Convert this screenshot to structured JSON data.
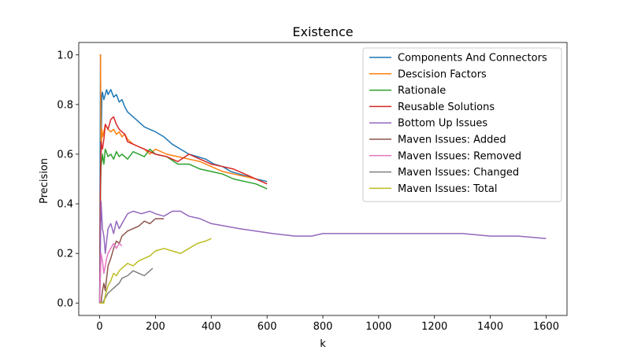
{
  "chart_data": {
    "type": "line",
    "title": "Existence",
    "xlabel": "k",
    "ylabel": "Precision",
    "xlim": [
      -75,
      1675
    ],
    "ylim": [
      -0.05,
      1.05
    ],
    "xticks": [
      0,
      200,
      400,
      600,
      800,
      1000,
      1200,
      1400,
      1600
    ],
    "yticks": [
      0.0,
      0.2,
      0.4,
      0.6,
      0.8,
      1.0
    ],
    "xtick_labels": [
      "0",
      "200",
      "400",
      "600",
      "800",
      "1000",
      "1200",
      "1400",
      "1600"
    ],
    "ytick_labels": [
      "0.0",
      "0.2",
      "0.4",
      "0.6",
      "0.8",
      "1.0"
    ],
    "legend_position": "top-right",
    "series": [
      {
        "name": "Components And Connectors",
        "color": "#1f77b4",
        "x": [
          0,
          3,
          5,
          8,
          10,
          15,
          20,
          25,
          30,
          40,
          50,
          60,
          70,
          80,
          90,
          100,
          120,
          140,
          160,
          180,
          200,
          230,
          260,
          290,
          320,
          350,
          380,
          410,
          440,
          470,
          500,
          530,
          560,
          600
        ],
        "y": [
          0.0,
          1.0,
          0.6,
          0.84,
          0.85,
          0.82,
          0.84,
          0.86,
          0.84,
          0.86,
          0.83,
          0.84,
          0.81,
          0.82,
          0.79,
          0.77,
          0.75,
          0.73,
          0.71,
          0.7,
          0.69,
          0.67,
          0.64,
          0.62,
          0.6,
          0.59,
          0.58,
          0.56,
          0.55,
          0.53,
          0.52,
          0.51,
          0.5,
          0.49
        ]
      },
      {
        "name": "Descision Factors",
        "color": "#ff7f0e",
        "x": [
          0,
          3,
          5,
          8,
          10,
          15,
          20,
          30,
          40,
          50,
          60,
          70,
          80,
          90,
          100,
          120,
          140,
          160,
          180,
          200,
          240,
          280,
          320,
          360,
          400,
          440,
          480,
          520,
          560,
          600
        ],
        "y": [
          1.0,
          1.0,
          0.6,
          0.7,
          0.67,
          0.69,
          0.72,
          0.7,
          0.69,
          0.7,
          0.68,
          0.69,
          0.67,
          0.68,
          0.66,
          0.64,
          0.63,
          0.62,
          0.6,
          0.62,
          0.6,
          0.59,
          0.58,
          0.57,
          0.55,
          0.53,
          0.52,
          0.51,
          0.5,
          0.48
        ]
      },
      {
        "name": "Rationale",
        "color": "#2ca02c",
        "x": [
          0,
          3,
          5,
          8,
          10,
          15,
          20,
          30,
          40,
          50,
          60,
          70,
          80,
          90,
          100,
          120,
          140,
          160,
          180,
          200,
          240,
          280,
          320,
          360,
          400,
          440,
          480,
          520,
          560,
          600
        ],
        "y": [
          0.0,
          0.45,
          0.55,
          0.58,
          0.6,
          0.56,
          0.62,
          0.59,
          0.6,
          0.58,
          0.61,
          0.59,
          0.6,
          0.59,
          0.58,
          0.61,
          0.6,
          0.59,
          0.62,
          0.6,
          0.59,
          0.56,
          0.56,
          0.54,
          0.53,
          0.52,
          0.5,
          0.49,
          0.48,
          0.46
        ]
      },
      {
        "name": "Reusable Solutions",
        "color": "#d62728",
        "x": [
          0,
          3,
          5,
          8,
          10,
          15,
          20,
          30,
          40,
          50,
          60,
          70,
          80,
          90,
          100,
          120,
          140,
          160,
          180,
          200,
          240,
          280,
          320,
          360,
          400,
          440,
          480,
          520,
          560,
          600
        ],
        "y": [
          0.0,
          0.5,
          0.65,
          0.63,
          0.62,
          0.66,
          0.72,
          0.7,
          0.74,
          0.75,
          0.72,
          0.7,
          0.69,
          0.68,
          0.65,
          0.64,
          0.63,
          0.62,
          0.61,
          0.6,
          0.59,
          0.57,
          0.6,
          0.58,
          0.56,
          0.55,
          0.54,
          0.52,
          0.5,
          0.48
        ]
      },
      {
        "name": "Bottom Up Issues",
        "color": "#9467bd",
        "x": [
          0,
          5,
          10,
          15,
          20,
          25,
          30,
          40,
          50,
          60,
          70,
          80,
          100,
          120,
          150,
          180,
          200,
          230,
          260,
          290,
          320,
          360,
          400,
          450,
          500,
          560,
          620,
          700,
          760,
          800,
          860,
          900,
          950,
          1000,
          1100,
          1200,
          1300,
          1400,
          1500,
          1600
        ],
        "y": [
          0.0,
          0.41,
          0.3,
          0.27,
          0.2,
          0.25,
          0.3,
          0.32,
          0.28,
          0.33,
          0.3,
          0.32,
          0.36,
          0.37,
          0.36,
          0.37,
          0.36,
          0.35,
          0.37,
          0.37,
          0.35,
          0.34,
          0.32,
          0.31,
          0.3,
          0.29,
          0.28,
          0.27,
          0.27,
          0.28,
          0.28,
          0.28,
          0.28,
          0.28,
          0.28,
          0.28,
          0.28,
          0.27,
          0.27,
          0.26
        ]
      },
      {
        "name": "Maven Issues: Added",
        "color": "#8c564b",
        "x": [
          0,
          5,
          10,
          15,
          20,
          25,
          30,
          40,
          50,
          60,
          70,
          80,
          90,
          100,
          120,
          140,
          160,
          180,
          200,
          230
        ],
        "y": [
          0.0,
          0.0,
          0.05,
          0.08,
          0.05,
          0.1,
          0.15,
          0.18,
          0.22,
          0.25,
          0.24,
          0.27,
          0.28,
          0.29,
          0.3,
          0.31,
          0.33,
          0.32,
          0.34,
          0.34
        ]
      },
      {
        "name": "Maven Issues: Removed",
        "color": "#e377c2",
        "x": [
          0,
          5,
          10,
          15,
          20,
          25,
          30,
          40,
          50,
          60,
          70,
          80
        ],
        "y": [
          0.0,
          0.2,
          0.17,
          0.12,
          0.15,
          0.18,
          0.2,
          0.22,
          0.24,
          0.22,
          0.24,
          0.23
        ]
      },
      {
        "name": "Maven Issues: Changed",
        "color": "#7f7f7f",
        "x": [
          0,
          5,
          10,
          20,
          30,
          40,
          50,
          60,
          70,
          80,
          100,
          120,
          140,
          160,
          180,
          190
        ],
        "y": [
          0.0,
          0.0,
          0.0,
          0.02,
          0.04,
          0.05,
          0.06,
          0.07,
          0.08,
          0.1,
          0.11,
          0.13,
          0.12,
          0.11,
          0.13,
          0.14
        ]
      },
      {
        "name": "Maven Issues: Total",
        "color": "#bcbd22",
        "x": [
          0,
          5,
          10,
          15,
          20,
          25,
          30,
          40,
          50,
          60,
          70,
          80,
          100,
          120,
          140,
          160,
          180,
          200,
          230,
          260,
          290,
          320,
          350,
          380,
          400
        ],
        "y": [
          0.0,
          0.0,
          0.0,
          0.0,
          0.03,
          0.05,
          0.07,
          0.09,
          0.12,
          0.11,
          0.13,
          0.14,
          0.16,
          0.15,
          0.17,
          0.18,
          0.19,
          0.21,
          0.22,
          0.21,
          0.2,
          0.22,
          0.24,
          0.25,
          0.26
        ]
      }
    ]
  }
}
